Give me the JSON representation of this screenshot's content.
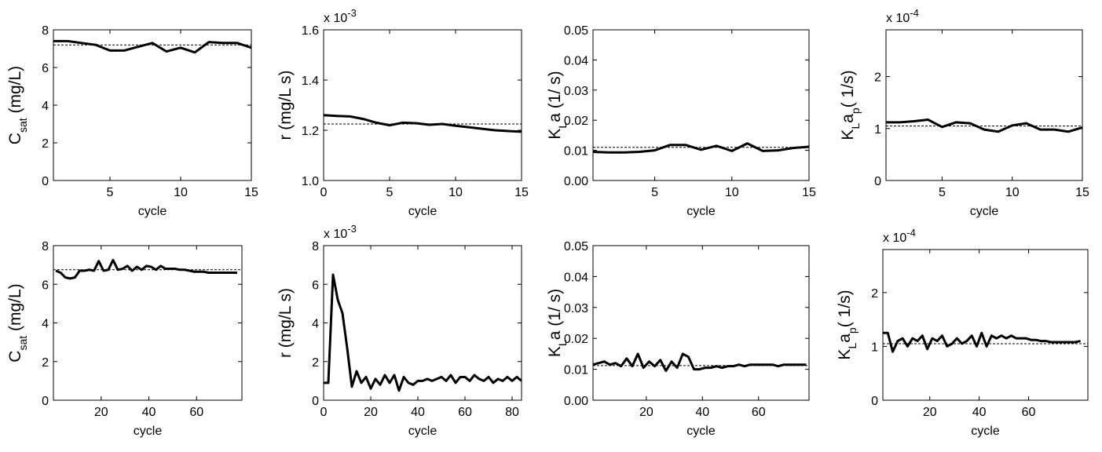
{
  "chart_data": [
    {
      "type": "line",
      "ylabel": [
        {
          "text": "C"
        },
        {
          "text": "sat",
          "sub": true
        },
        {
          "text": "  (mg/L)"
        }
      ],
      "xlabel": "cycle",
      "x": [
        1,
        2,
        3,
        4,
        5,
        6,
        7,
        8,
        9,
        10,
        11,
        12,
        13,
        14,
        15
      ],
      "values": [
        7.4,
        7.4,
        7.3,
        7.2,
        6.9,
        6.9,
        7.1,
        7.3,
        6.85,
        7.05,
        6.8,
        7.35,
        7.3,
        7.3,
        7.05
      ],
      "reference": 7.2,
      "xlim": [
        1,
        15
      ],
      "xticks": [
        5,
        10,
        15
      ],
      "ylim": [
        0,
        8
      ],
      "yticks": [
        0,
        2,
        4,
        6,
        8
      ],
      "color": "#000000"
    },
    {
      "type": "line",
      "ylabel": [
        {
          "text": "r  (mg/L s)"
        }
      ],
      "xlabel": "cycle",
      "multiplier": {
        "base": "x 10",
        "exponent": "-3"
      },
      "x": [
        0,
        1,
        2,
        3,
        4,
        5,
        6,
        7,
        8,
        9,
        10,
        11,
        12,
        13,
        14,
        15
      ],
      "values": [
        1.26,
        1.257,
        1.255,
        1.245,
        1.23,
        1.22,
        1.23,
        1.228,
        1.222,
        1.225,
        1.218,
        1.212,
        1.206,
        1.2,
        1.197,
        1.194
      ],
      "reference": 1.225,
      "xlim": [
        0,
        15
      ],
      "xticks": [
        0,
        5,
        10,
        15
      ],
      "ylim": [
        1.0,
        1.6
      ],
      "yticks": [
        {
          "value": 1.0,
          "label": "1.0"
        },
        1.2,
        1.4,
        1.6
      ],
      "color": "#000000"
    },
    {
      "type": "line",
      "ylabel": [
        {
          "text": "K"
        },
        {
          "text": "L",
          "sub": true
        },
        {
          "text": "a  (1/ s)"
        }
      ],
      "xlabel": "cycle",
      "x": [
        1,
        2,
        3,
        4,
        5,
        6,
        7,
        8,
        9,
        10,
        11,
        12,
        13,
        14,
        15
      ],
      "values": [
        0.0095,
        0.0093,
        0.0093,
        0.0095,
        0.01,
        0.0118,
        0.0118,
        0.0102,
        0.0115,
        0.0098,
        0.0123,
        0.0098,
        0.01,
        0.0108,
        0.0112
      ],
      "reference": 0.011,
      "xlim": [
        1,
        15
      ],
      "xticks": [
        5,
        10,
        15
      ],
      "ylim": [
        0,
        0.05
      ],
      "yticks": [
        {
          "value": 0,
          "label": "0.00"
        },
        0.01,
        0.02,
        0.03,
        0.04,
        0.05
      ],
      "color": "#000000"
    },
    {
      "type": "line",
      "ylabel": [
        {
          "text": "K"
        },
        {
          "text": "L",
          "sub": true
        },
        {
          "text": "a"
        },
        {
          "text": "p",
          "sub": true
        },
        {
          "text": "( 1/s)"
        }
      ],
      "xlabel": "cycle",
      "multiplier": {
        "base": "x 10",
        "exponent": "-4"
      },
      "x": [
        1,
        2,
        3,
        4,
        5,
        6,
        7,
        8,
        9,
        10,
        11,
        12,
        13,
        14,
        15
      ],
      "values": [
        1.12,
        1.12,
        1.14,
        1.17,
        1.03,
        1.12,
        1.1,
        0.98,
        0.94,
        1.06,
        1.1,
        0.98,
        0.98,
        0.94,
        1.02
      ],
      "reference": 1.05,
      "xlim": [
        1,
        15
      ],
      "xticks": [
        5,
        10,
        15
      ],
      "ylim": [
        0,
        2.9
      ],
      "yticks": [
        0,
        1,
        2
      ],
      "color": "#000000"
    },
    {
      "type": "line",
      "ylabel": [
        {
          "text": "C"
        },
        {
          "text": "sat",
          "sub": true
        },
        {
          "text": "  (mg/L)"
        }
      ],
      "xlabel": "cycle",
      "x": [
        1,
        3,
        5,
        7,
        9,
        11,
        13,
        15,
        17,
        19,
        21,
        23,
        25,
        27,
        29,
        31,
        33,
        35,
        37,
        39,
        41,
        43,
        45,
        47,
        49,
        51,
        53,
        55,
        57,
        59,
        61,
        63,
        65,
        67,
        69,
        71,
        73,
        75,
        77
      ],
      "values": [
        6.7,
        6.6,
        6.35,
        6.3,
        6.35,
        6.7,
        6.7,
        6.75,
        6.7,
        7.2,
        6.7,
        6.75,
        7.25,
        6.75,
        6.8,
        6.95,
        6.7,
        6.9,
        6.75,
        6.95,
        6.9,
        6.75,
        6.95,
        6.8,
        6.8,
        6.8,
        6.75,
        6.75,
        6.7,
        6.65,
        6.65,
        6.65,
        6.6,
        6.6,
        6.6,
        6.6,
        6.6,
        6.6,
        6.6
      ],
      "reference": 6.75,
      "xlim": [
        0,
        79
      ],
      "xticks": [
        20,
        40,
        60
      ],
      "ylim": [
        0,
        8
      ],
      "yticks": [
        0,
        2,
        4,
        6,
        8
      ],
      "color": "#000000"
    },
    {
      "type": "line",
      "ylabel": [
        {
          "text": "r  (mg/L s)"
        }
      ],
      "xlabel": "cycle",
      "multiplier": {
        "base": "x 10",
        "exponent": "-3"
      },
      "x": [
        0,
        2,
        4,
        6,
        8,
        10,
        12,
        14,
        16,
        18,
        20,
        22,
        24,
        26,
        28,
        30,
        32,
        34,
        36,
        38,
        40,
        42,
        44,
        46,
        48,
        50,
        52,
        54,
        56,
        58,
        60,
        62,
        64,
        66,
        68,
        70,
        72,
        74,
        76,
        78,
        80,
        82,
        84
      ],
      "values": [
        0.9,
        0.9,
        6.5,
        5.2,
        4.5,
        2.7,
        0.7,
        1.5,
        0.9,
        1.2,
        0.6,
        1.1,
        0.8,
        1.3,
        0.9,
        1.3,
        0.5,
        1.2,
        0.9,
        0.8,
        1.0,
        1.0,
        1.1,
        1.0,
        1.1,
        1.2,
        1.0,
        1.3,
        0.9,
        1.2,
        1.2,
        1.0,
        1.3,
        1.1,
        1.0,
        1.2,
        0.9,
        1.1,
        1.0,
        1.2,
        1.0,
        1.2,
        1.0
      ],
      "xlim": [
        0,
        84
      ],
      "xticks": [
        0,
        20,
        40,
        60,
        80
      ],
      "ylim": [
        0,
        8
      ],
      "yticks": [
        0,
        2,
        4,
        6,
        8
      ],
      "color": "#000000"
    },
    {
      "type": "line",
      "ylabel": [
        {
          "text": "K"
        },
        {
          "text": "L",
          "sub": true
        },
        {
          "text": "a  (1/ s)"
        }
      ],
      "xlabel": "cycle",
      "x": [
        1,
        3,
        5,
        7,
        9,
        11,
        13,
        15,
        17,
        19,
        21,
        23,
        25,
        27,
        29,
        31,
        33,
        35,
        37,
        39,
        41,
        43,
        45,
        47,
        49,
        51,
        53,
        55,
        57,
        59,
        61,
        63,
        65,
        67,
        69,
        71,
        73,
        75,
        77
      ],
      "values": [
        0.0115,
        0.012,
        0.0125,
        0.0115,
        0.012,
        0.011,
        0.0135,
        0.011,
        0.015,
        0.0105,
        0.0125,
        0.011,
        0.013,
        0.0095,
        0.0125,
        0.0105,
        0.015,
        0.014,
        0.01,
        0.01,
        0.0105,
        0.0105,
        0.011,
        0.0105,
        0.011,
        0.011,
        0.0115,
        0.011,
        0.0115,
        0.0115,
        0.0115,
        0.0115,
        0.0115,
        0.011,
        0.0115,
        0.0115,
        0.0115,
        0.0115,
        0.0115
      ],
      "reference": 0.0112,
      "xlim": [
        1,
        78
      ],
      "xticks": [
        20,
        40,
        60
      ],
      "ylim": [
        0,
        0.05
      ],
      "yticks": [
        {
          "value": 0,
          "label": "0.00"
        },
        0.01,
        0.02,
        0.03,
        0.04,
        0.05
      ],
      "color": "#000000"
    },
    {
      "type": "line",
      "ylabel": [
        {
          "text": "K"
        },
        {
          "text": "L",
          "sub": true
        },
        {
          "text": "a"
        },
        {
          "text": "p",
          "sub": true
        },
        {
          "text": "( 1/s)"
        }
      ],
      "xlabel": "cycle",
      "multiplier": {
        "base": "x 10",
        "exponent": "-4"
      },
      "x": [
        1,
        3,
        5,
        7,
        9,
        11,
        13,
        15,
        17,
        19,
        21,
        23,
        25,
        27,
        29,
        31,
        33,
        35,
        37,
        39,
        41,
        43,
        45,
        47,
        49,
        51,
        53,
        55,
        57,
        59,
        61,
        63,
        65,
        67,
        69,
        71,
        73,
        75,
        77,
        79,
        81
      ],
      "values": [
        1.25,
        1.25,
        0.9,
        1.1,
        1.15,
        1.0,
        1.15,
        1.1,
        1.2,
        0.95,
        1.15,
        1.1,
        1.2,
        1.0,
        1.05,
        1.15,
        1.05,
        1.1,
        1.2,
        1.0,
        1.25,
        1.0,
        1.2,
        1.15,
        1.2,
        1.15,
        1.2,
        1.15,
        1.15,
        1.15,
        1.12,
        1.12,
        1.1,
        1.1,
        1.08,
        1.08,
        1.08,
        1.08,
        1.08,
        1.08,
        1.1
      ],
      "reference": 1.05,
      "xlim": [
        1,
        84
      ],
      "xticks": [
        20,
        40,
        60
      ],
      "ylim": [
        0,
        2.8
      ],
      "yticks": [
        0,
        1,
        2
      ],
      "color": "#000000"
    }
  ]
}
